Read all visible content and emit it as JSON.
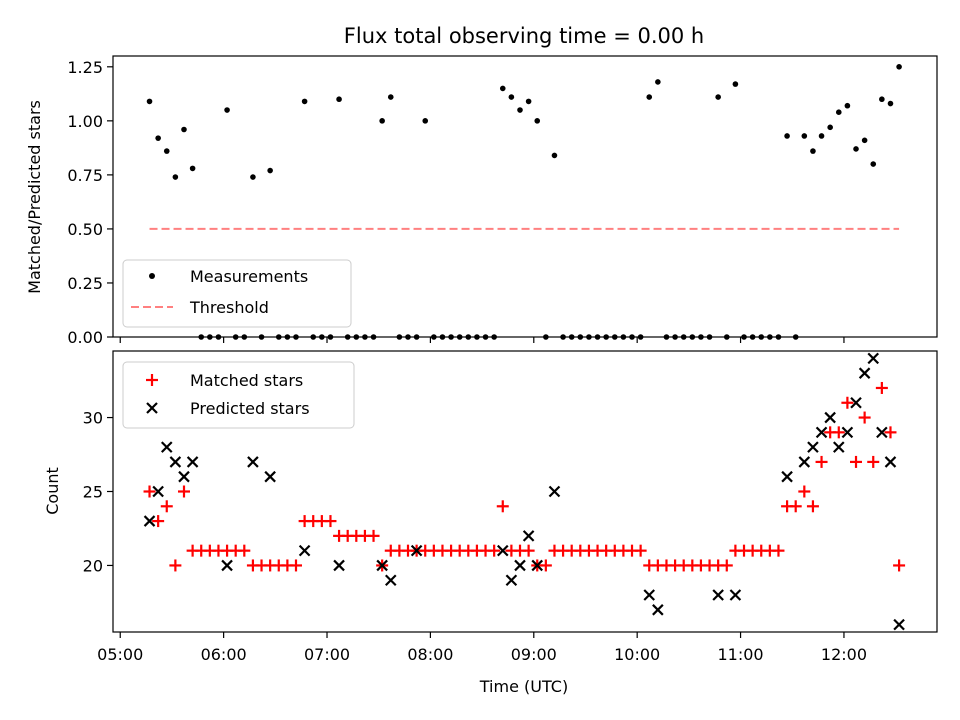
{
  "figure": {
    "title": "Flux total observing time = 0.00 h",
    "xlabel": "Time (UTC)",
    "x_ticks": [
      "05:00",
      "06:00",
      "07:00",
      "08:00",
      "09:00",
      "10:00",
      "11:00",
      "12:00"
    ],
    "x_tick_hours": [
      5,
      6,
      7,
      8,
      9,
      10,
      11,
      12
    ]
  },
  "colors": {
    "measure": "#000000",
    "threshold": "#ff8080",
    "matched": "#ff0000",
    "predicted": "#000000"
  },
  "chart_data": [
    {
      "type": "scatter",
      "ylabel": "Matched/Predicted stars",
      "ylim": [
        0,
        1.3
      ],
      "xlim_hours": [
        4.93,
        12.9
      ],
      "y_ticks": [
        "0.00",
        "0.25",
        "0.50",
        "0.75",
        "1.00",
        "1.25"
      ],
      "y_tick_values": [
        0,
        0.25,
        0.5,
        0.75,
        1.0,
        1.25
      ],
      "legend_position": "lower-left",
      "series": [
        {
          "name": "Measurements",
          "marker": "dot",
          "x": [
            "05:17",
            "05:22",
            "05:27",
            "05:32",
            "05:37",
            "05:42",
            "05:47",
            "05:52",
            "05:57",
            "06:02",
            "06:07",
            "06:12",
            "06:17",
            "06:22",
            "06:27",
            "06:32",
            "06:37",
            "06:42",
            "06:47",
            "06:52",
            "06:57",
            "07:02",
            "07:07",
            "07:12",
            "07:17",
            "07:22",
            "07:27",
            "07:32",
            "07:37",
            "07:42",
            "07:47",
            "07:52",
            "07:57",
            "08:02",
            "08:07",
            "08:12",
            "08:17",
            "08:22",
            "08:27",
            "08:32",
            "08:37",
            "08:42",
            "08:47",
            "08:52",
            "08:57",
            "09:02",
            "09:07",
            "09:12",
            "09:17",
            "09:22",
            "09:27",
            "09:32",
            "09:37",
            "09:42",
            "09:47",
            "09:52",
            "09:57",
            "10:02",
            "10:07",
            "10:12",
            "10:17",
            "10:22",
            "10:27",
            "10:32",
            "10:37",
            "10:42",
            "10:47",
            "10:52",
            "10:57",
            "11:02",
            "11:07",
            "11:12",
            "11:17",
            "11:22",
            "11:27",
            "11:32",
            "11:37",
            "11:42",
            "11:47",
            "11:52",
            "11:57",
            "12:02",
            "12:07",
            "12:12",
            "12:17",
            "12:22",
            "12:27",
            "12:32"
          ],
          "y": [
            1.09,
            0.92,
            0.86,
            0.74,
            0.96,
            0.78,
            0.0,
            0.0,
            0.0,
            1.05,
            0.0,
            0.0,
            0.74,
            0.0,
            0.77,
            0.0,
            0.0,
            0.0,
            1.09,
            0.0,
            0.0,
            0.0,
            1.1,
            0.0,
            0.0,
            0.0,
            0.0,
            1.0,
            1.11,
            0.0,
            0.0,
            0.0,
            1.0,
            0.0,
            0.0,
            0.0,
            0.0,
            0.0,
            0.0,
            0.0,
            0.0,
            1.15,
            1.11,
            1.05,
            1.09,
            1.0,
            0.0,
            0.84,
            0.0,
            0.0,
            0.0,
            0.0,
            0.0,
            0.0,
            0.0,
            0.0,
            0.0,
            0.0,
            1.11,
            1.18,
            0.0,
            0.0,
            0.0,
            0.0,
            0.0,
            0.0,
            1.11,
            0.0,
            1.17,
            0.0,
            0.0,
            0.0,
            0.0,
            0.0,
            0.93,
            0.0,
            0.93,
            0.86,
            0.93,
            0.97,
            1.04,
            1.07,
            0.87,
            0.91,
            0.8,
            1.1,
            1.08,
            1.25
          ]
        },
        {
          "name": "Threshold",
          "marker": "dashed-line",
          "x": [
            "05:17",
            "12:32"
          ],
          "y": [
            0.5,
            0.5
          ]
        }
      ]
    },
    {
      "type": "scatter",
      "ylabel": "Count",
      "ylim": [
        15.5,
        34.5
      ],
      "xlim_hours": [
        4.93,
        12.9
      ],
      "y_ticks": [
        "20",
        "25",
        "30"
      ],
      "y_tick_values": [
        20,
        25,
        30
      ],
      "legend_position": "upper-left",
      "series": [
        {
          "name": "Matched stars",
          "marker": "plus",
          "x": [
            "05:17",
            "05:22",
            "05:27",
            "05:32",
            "05:37",
            "05:42",
            "05:47",
            "05:52",
            "05:57",
            "06:02",
            "06:07",
            "06:12",
            "06:17",
            "06:22",
            "06:27",
            "06:32",
            "06:37",
            "06:42",
            "06:47",
            "06:52",
            "06:57",
            "07:02",
            "07:07",
            "07:12",
            "07:17",
            "07:22",
            "07:27",
            "07:32",
            "07:37",
            "07:42",
            "07:47",
            "07:52",
            "07:57",
            "08:02",
            "08:07",
            "08:12",
            "08:17",
            "08:22",
            "08:27",
            "08:32",
            "08:37",
            "08:42",
            "08:47",
            "08:52",
            "08:57",
            "09:02",
            "09:07",
            "09:12",
            "09:17",
            "09:22",
            "09:27",
            "09:32",
            "09:37",
            "09:42",
            "09:47",
            "09:52",
            "09:57",
            "10:02",
            "10:07",
            "10:12",
            "10:17",
            "10:22",
            "10:27",
            "10:32",
            "10:37",
            "10:42",
            "10:47",
            "10:52",
            "10:57",
            "11:02",
            "11:07",
            "11:12",
            "11:17",
            "11:22",
            "11:27",
            "11:32",
            "11:37",
            "11:42",
            "11:47",
            "11:52",
            "11:57",
            "12:02",
            "12:07",
            "12:12",
            "12:17",
            "12:22",
            "12:27",
            "12:32"
          ],
          "y": [
            25,
            23,
            24,
            20,
            25,
            21,
            21,
            21,
            21,
            21,
            21,
            21,
            20,
            20,
            20,
            20,
            20,
            20,
            23,
            23,
            23,
            23,
            22,
            22,
            22,
            22,
            22,
            20,
            21,
            21,
            21,
            21,
            21,
            21,
            21,
            21,
            21,
            21,
            21,
            21,
            21,
            24,
            21,
            21,
            21,
            20,
            20,
            21,
            21,
            21,
            21,
            21,
            21,
            21,
            21,
            21,
            21,
            21,
            20,
            20,
            20,
            20,
            20,
            20,
            20,
            20,
            20,
            20,
            21,
            21,
            21,
            21,
            21,
            21,
            24,
            24,
            25,
            24,
            27,
            29,
            29,
            31,
            27,
            30,
            27,
            32,
            29,
            20
          ]
        },
        {
          "name": "Predicted stars",
          "marker": "x",
          "x": [
            "05:17",
            "05:22",
            "05:27",
            "05:32",
            "05:37",
            "05:42",
            "06:02",
            "06:17",
            "06:27",
            "06:47",
            "07:07",
            "07:32",
            "07:37",
            "07:52",
            "08:42",
            "08:47",
            "08:52",
            "08:57",
            "09:02",
            "09:12",
            "10:07",
            "10:12",
            "10:47",
            "10:57",
            "11:27",
            "11:37",
            "11:42",
            "11:47",
            "11:52",
            "11:57",
            "12:02",
            "12:07",
            "12:12",
            "12:17",
            "12:22",
            "12:27",
            "12:32"
          ],
          "y": [
            23,
            25,
            28,
            27,
            26,
            27,
            20,
            27,
            26,
            21,
            20,
            20,
            19,
            21,
            21,
            19,
            20,
            22,
            20,
            25,
            18,
            17,
            18,
            18,
            26,
            27,
            28,
            29,
            30,
            28,
            29,
            31,
            33,
            34,
            29,
            27,
            16
          ]
        }
      ]
    }
  ]
}
